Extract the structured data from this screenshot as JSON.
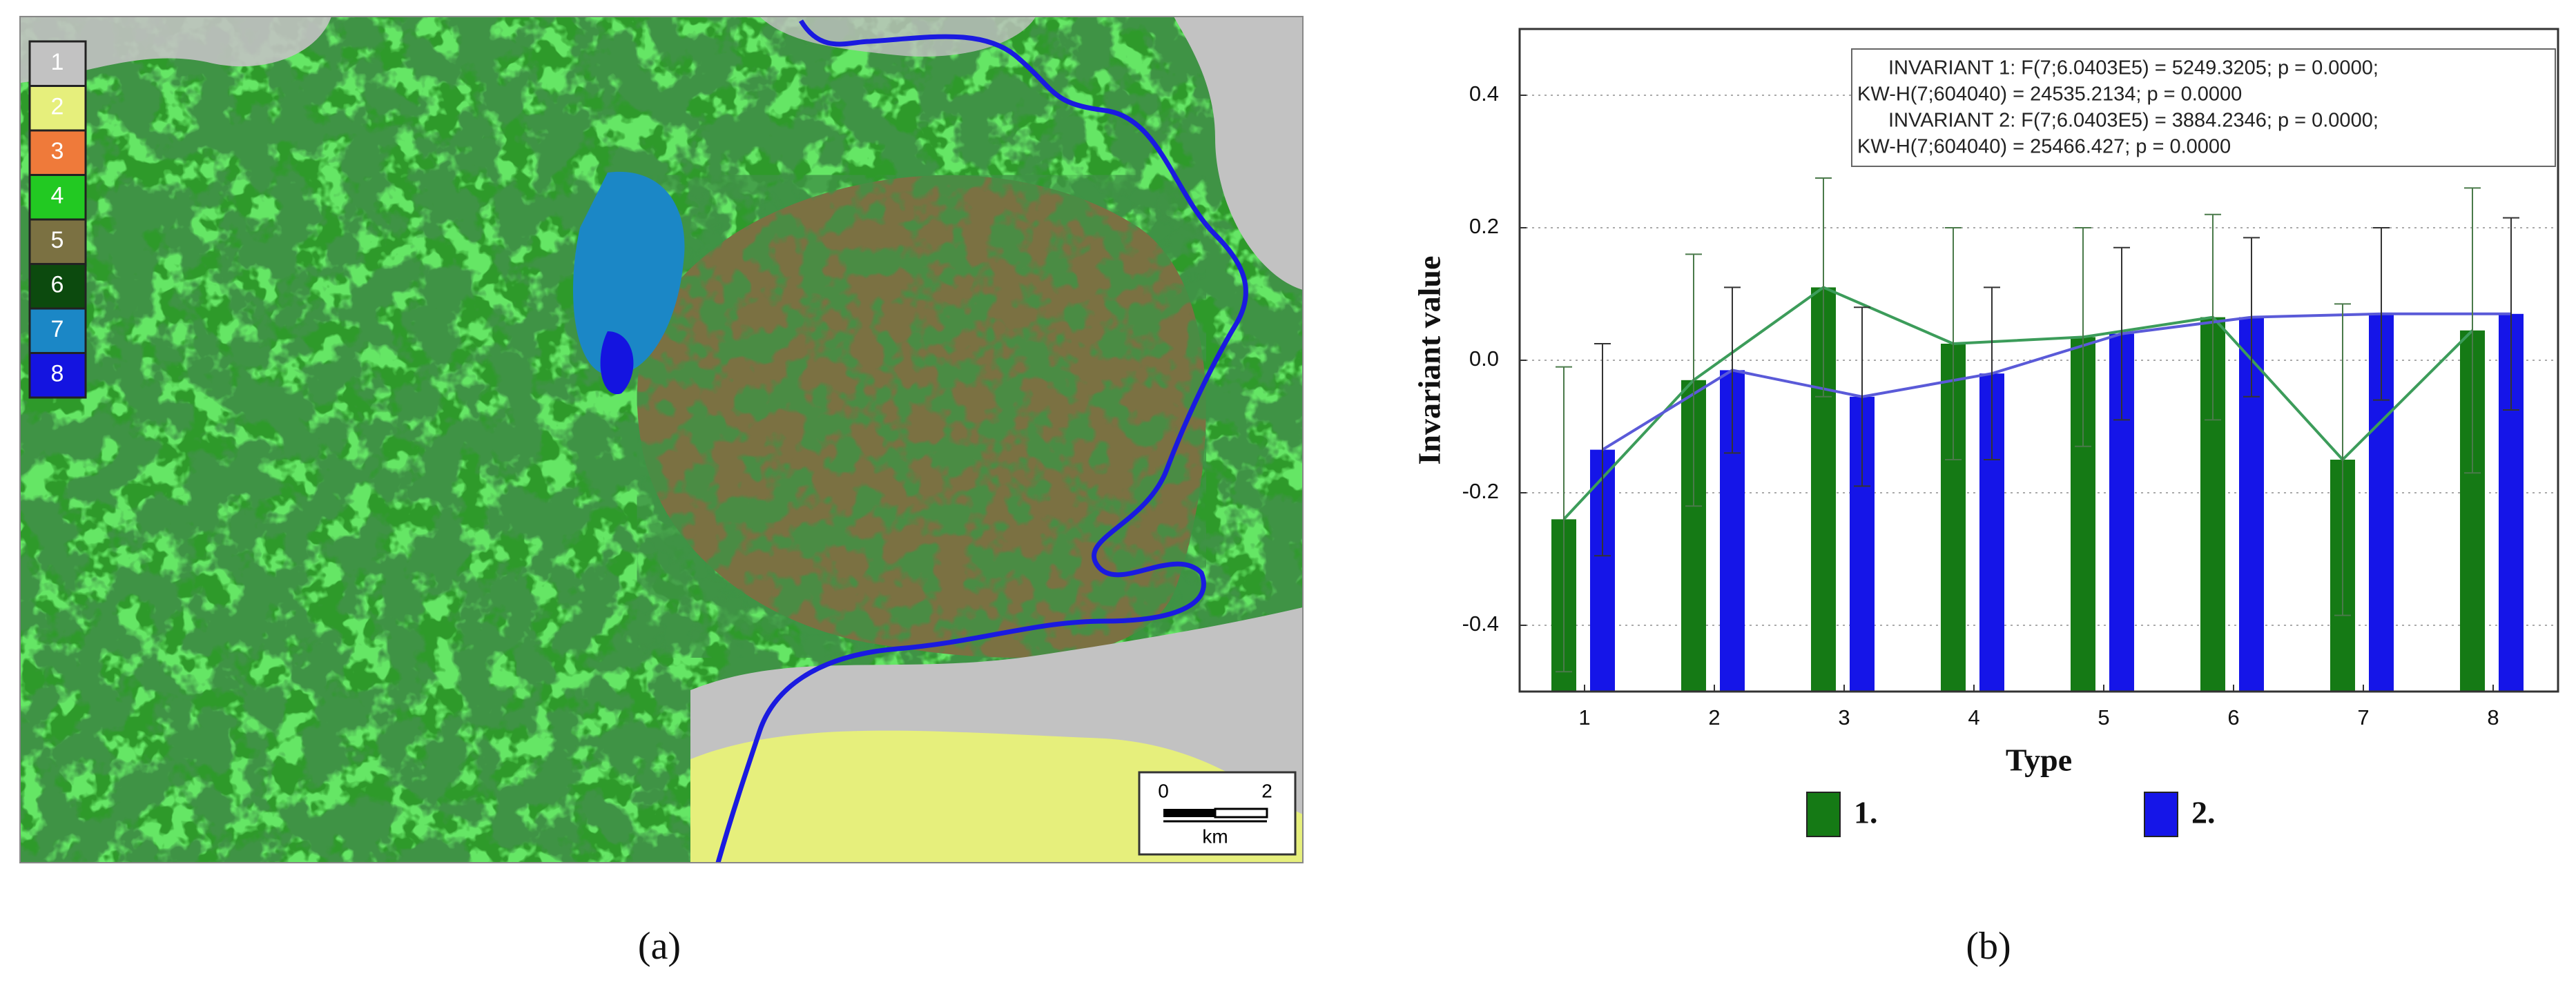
{
  "map": {
    "legend": [
      {
        "label": "1",
        "color": "#c2c2c2"
      },
      {
        "label": "2",
        "color": "#e6ef7c"
      },
      {
        "label": "3",
        "color": "#ef7a3a"
      },
      {
        "label": "4",
        "color": "#22c922"
      },
      {
        "label": "5",
        "color": "#7b7142"
      },
      {
        "label": "6",
        "color": "#0c4a0e"
      },
      {
        "label": "7",
        "color": "#1b87c6"
      },
      {
        "label": "8",
        "color": "#1414e0"
      }
    ],
    "scale": {
      "start": "0",
      "end": "2",
      "unit": "km"
    },
    "caption": "(a)"
  },
  "chart_data": {
    "type": "bar",
    "caption": "(b)",
    "ylabel": "Invariant value",
    "xlabel": "Type",
    "annotations": [
      "INVARIANT 1:   F(7;6.0403E5) = 5249.3205; p = 0.0000;",
      "KW-H(7;604040) = 24535.2134; p = 0.0000",
      "INVARIANT 2:   F(7;6.0403E5) = 3884.2346; p = 0.0000;",
      "KW-H(7;604040) = 25466.427; p = 0.0000"
    ],
    "categories": [
      "1",
      "2",
      "3",
      "4",
      "5",
      "6",
      "7",
      "8"
    ],
    "series": [
      {
        "name": "1.",
        "color": "#157a15",
        "line_color": "#3c9c5a",
        "values": [
          -0.24,
          -0.03,
          0.11,
          0.025,
          0.035,
          0.065,
          -0.15,
          0.045
        ],
        "errors": [
          0.23,
          0.19,
          0.165,
          0.175,
          0.165,
          0.155,
          0.235,
          0.215
        ]
      },
      {
        "name": "2.",
        "color": "#1515e8",
        "line_color": "#5a5ad8",
        "values": [
          -0.135,
          -0.015,
          -0.055,
          -0.02,
          0.04,
          0.065,
          0.07,
          0.07
        ],
        "errors": [
          0.16,
          0.125,
          0.135,
          0.13,
          0.13,
          0.12,
          0.13,
          0.145
        ]
      }
    ],
    "ylim": [
      -0.5,
      0.5
    ],
    "yticks": [
      -0.4,
      -0.2,
      {
        "value": 0,
        "label": "0.0"
      },
      0.2,
      0.4
    ],
    "grid": true
  }
}
